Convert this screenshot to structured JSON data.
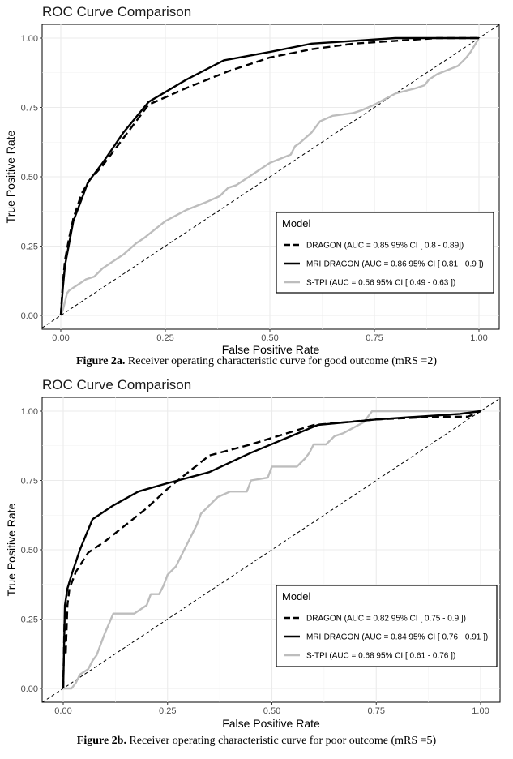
{
  "chart_data": [
    {
      "type": "line",
      "title": "ROC Curve Comparison",
      "xlabel": "False Positive Rate",
      "ylabel": "True Positive Rate",
      "xlim": [
        0,
        1
      ],
      "ylim": [
        0,
        1
      ],
      "x_ticks": [
        "0.00",
        "0.25",
        "0.50",
        "0.75",
        "1.00"
      ],
      "y_ticks": [
        "0.00",
        "0.25",
        "0.50",
        "0.75",
        "1.00"
      ],
      "grid": true,
      "legend_title": "Model",
      "legend_position": "bottom-right",
      "reference_line": "diagonal",
      "series": [
        {
          "name": "DRAGON (AUC = 0.85 95% CI [ 0.8 - 0.89])",
          "style": "dashed",
          "color": "#000000",
          "x": [
            0,
            0.005,
            0.01,
            0.02,
            0.03,
            0.05,
            0.07,
            0.1,
            0.15,
            0.21,
            0.3,
            0.4,
            0.5,
            0.6,
            0.7,
            0.8,
            0.9,
            1.0
          ],
          "y": [
            0,
            0.12,
            0.2,
            0.28,
            0.35,
            0.44,
            0.49,
            0.54,
            0.64,
            0.76,
            0.82,
            0.88,
            0.93,
            0.96,
            0.98,
            0.99,
            1.0,
            1.0
          ]
        },
        {
          "name": "MRI-DRAGON (AUC = 0.86 95% CI [ 0.81 - 0.9 ])",
          "style": "solid",
          "color": "#000000",
          "x": [
            0,
            0.005,
            0.01,
            0.02,
            0.03,
            0.05,
            0.065,
            0.1,
            0.15,
            0.21,
            0.3,
            0.39,
            0.5,
            0.6,
            0.7,
            0.8,
            0.9,
            1.0
          ],
          "y": [
            0,
            0.1,
            0.18,
            0.26,
            0.34,
            0.42,
            0.48,
            0.55,
            0.66,
            0.77,
            0.85,
            0.92,
            0.95,
            0.98,
            0.99,
            1.0,
            1.0,
            1.0
          ]
        },
        {
          "name": "S-TPI (AUC = 0.56 95% CI [ 0.49 - 0.63 ])",
          "style": "solid",
          "color": "#bdbdbd",
          "x": [
            0,
            0.005,
            0.01,
            0.015,
            0.02,
            0.03,
            0.05,
            0.06,
            0.08,
            0.1,
            0.12,
            0.15,
            0.18,
            0.2,
            0.25,
            0.3,
            0.35,
            0.38,
            0.4,
            0.42,
            0.45,
            0.5,
            0.55,
            0.56,
            0.57,
            0.6,
            0.62,
            0.65,
            0.7,
            0.72,
            0.75,
            0.8,
            0.85,
            0.87,
            0.88,
            0.9,
            0.95,
            0.97,
            0.98,
            1.0
          ],
          "y": [
            0,
            0.02,
            0.05,
            0.08,
            0.09,
            0.1,
            0.12,
            0.13,
            0.14,
            0.17,
            0.19,
            0.22,
            0.26,
            0.28,
            0.34,
            0.38,
            0.41,
            0.43,
            0.46,
            0.47,
            0.5,
            0.55,
            0.58,
            0.61,
            0.62,
            0.66,
            0.7,
            0.72,
            0.73,
            0.74,
            0.76,
            0.8,
            0.82,
            0.83,
            0.85,
            0.87,
            0.9,
            0.93,
            0.95,
            1.0
          ]
        }
      ],
      "caption_label": "Figure 2a.",
      "caption_text": " Receiver operating characteristic curve for good outcome (mRS =2)"
    },
    {
      "type": "line",
      "title": "ROC Curve Comparison",
      "xlabel": "False Positive Rate",
      "ylabel": "True Positive Rate",
      "xlim": [
        0,
        1
      ],
      "ylim": [
        0,
        1
      ],
      "x_ticks": [
        "0.00",
        "0.25",
        "0.50",
        "0.75",
        "1.00"
      ],
      "y_ticks": [
        "0.00",
        "0.25",
        "0.50",
        "0.75",
        "1.00"
      ],
      "grid": true,
      "legend_title": "Model",
      "legend_position": "bottom-right",
      "reference_line": "diagonal",
      "series": [
        {
          "name": "DRAGON (AUC = 0.82 95% CI [ 0.75 - 0.9 ])",
          "style": "dashed",
          "color": "#000000",
          "x": [
            0,
            0.003,
            0.006,
            0.01,
            0.015,
            0.03,
            0.06,
            0.1,
            0.15,
            0.2,
            0.25,
            0.3,
            0.35,
            0.45,
            0.6,
            0.75,
            0.9,
            0.97,
            1.0
          ],
          "y": [
            0,
            0.24,
            0.12,
            0.3,
            0.36,
            0.42,
            0.49,
            0.53,
            0.59,
            0.65,
            0.72,
            0.78,
            0.84,
            0.88,
            0.95,
            0.97,
            0.98,
            0.98,
            1.0
          ]
        },
        {
          "name": "MRI-DRAGON (AUC = 0.84 95% CI [ 0.76 - 0.91 ])",
          "style": "solid",
          "color": "#000000",
          "x": [
            0,
            0.004,
            0.01,
            0.02,
            0.04,
            0.07,
            0.12,
            0.18,
            0.25,
            0.35,
            0.45,
            0.61,
            0.75,
            0.85,
            0.95,
            1.0
          ],
          "y": [
            0,
            0.3,
            0.36,
            0.41,
            0.5,
            0.61,
            0.66,
            0.71,
            0.74,
            0.78,
            0.85,
            0.95,
            0.97,
            0.98,
            0.99,
            1.0
          ]
        },
        {
          "name": "S-TPI (AUC = 0.68 95% CI [ 0.61 - 0.76 ])",
          "style": "solid",
          "color": "#bdbdbd",
          "x": [
            0,
            0.02,
            0.03,
            0.04,
            0.06,
            0.07,
            0.08,
            0.1,
            0.12,
            0.17,
            0.2,
            0.21,
            0.23,
            0.24,
            0.25,
            0.27,
            0.29,
            0.31,
            0.32,
            0.33,
            0.35,
            0.37,
            0.4,
            0.44,
            0.45,
            0.49,
            0.5,
            0.56,
            0.58,
            0.59,
            0.6,
            0.63,
            0.65,
            0.67,
            0.72,
            0.74,
            0.78,
            0.85,
            0.9,
            1.0
          ],
          "y": [
            0,
            0.0,
            0.02,
            0.05,
            0.07,
            0.1,
            0.12,
            0.2,
            0.27,
            0.27,
            0.3,
            0.34,
            0.34,
            0.37,
            0.41,
            0.44,
            0.5,
            0.56,
            0.59,
            0.63,
            0.66,
            0.69,
            0.71,
            0.71,
            0.75,
            0.76,
            0.8,
            0.8,
            0.83,
            0.85,
            0.88,
            0.88,
            0.91,
            0.92,
            0.96,
            1.0,
            1.0,
            1.0,
            1.0,
            1.0
          ]
        }
      ],
      "caption_label": "Figure 2b.",
      "caption_text": " Receiver operating characteristic curve for poor outcome (mRS =5)"
    }
  ]
}
